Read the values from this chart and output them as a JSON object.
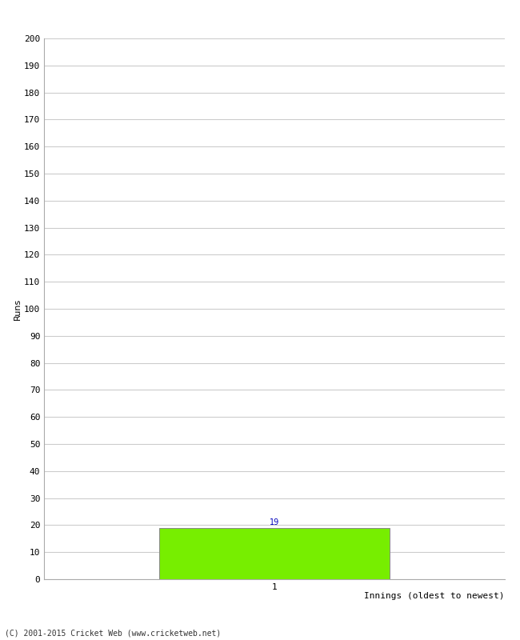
{
  "xlabel": "Innings (oldest to newest)",
  "ylabel": "Runs",
  "bar_values": [
    19
  ],
  "bar_positions": [
    1
  ],
  "bar_color": "#77ee00",
  "bar_edge_color": "#888888",
  "ylim": [
    0,
    200
  ],
  "ytick_step": 10,
  "xlim": [
    0.0,
    2.0
  ],
  "xtick_labels": [
    "1"
  ],
  "xtick_positions": [
    1
  ],
  "annotation_color": "#0000bb",
  "annotation_fontsize": 7,
  "axis_label_fontsize": 8,
  "tick_fontsize": 8,
  "grid_color": "#cccccc",
  "background_color": "#ffffff",
  "footer_text": "(C) 2001-2015 Cricket Web (www.cricketweb.net)",
  "footer_fontsize": 7,
  "xlabel_fontsize": 8,
  "bar_width": 1.0
}
